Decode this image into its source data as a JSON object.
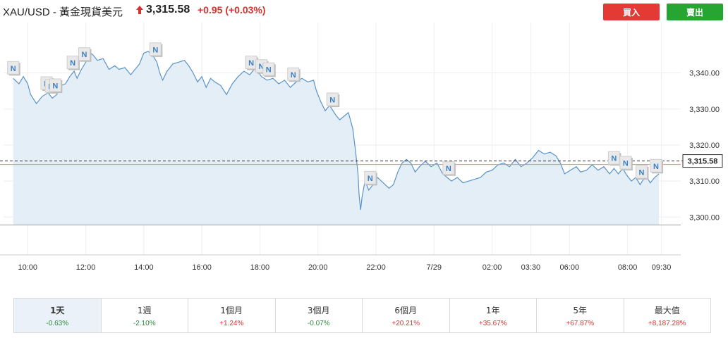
{
  "header": {
    "title": "XAU/USD - 黃金現貨美元",
    "price": "3,315.58",
    "change": "+0.95 (+0.03%)",
    "buy_label": "買入",
    "sell_label": "賣出"
  },
  "colors": {
    "line": "#5b93c7",
    "area": "#e4eef6",
    "buy": "#e53935",
    "sell": "#27a533",
    "price_line": "#e08a8a",
    "positive": "#d8322f",
    "negative": "#2e8b3d"
  },
  "chart_data": {
    "type": "area",
    "title": "",
    "xlabel": "",
    "ylabel": "",
    "ylim": [
      3289.5,
      3354
    ],
    "y_ticks": [
      3300,
      3310,
      3320,
      3330,
      3340
    ],
    "y_tick_labels": [
      "3,300.00",
      "3,310.00",
      "3,320.00",
      "3,330.00",
      "3,340.00"
    ],
    "x_ticks": [
      {
        "t": 0.5,
        "label": "10:00"
      },
      {
        "t": 2.5,
        "label": "12:00"
      },
      {
        "t": 4.5,
        "label": "14:00"
      },
      {
        "t": 6.5,
        "label": "16:00"
      },
      {
        "t": 8.5,
        "label": "18:00"
      },
      {
        "t": 10.5,
        "label": "20:00"
      },
      {
        "t": 12.5,
        "label": "22:00"
      },
      {
        "t": 14.5,
        "label": "7/29"
      },
      {
        "t": 16.5,
        "label": "02:00"
      },
      {
        "t": 17.833,
        "label": "03:30"
      },
      {
        "t": 19.167,
        "label": "06:00"
      },
      {
        "t": 21.167,
        "label": "08:00"
      },
      {
        "t": 22.333,
        "label": "09:30"
      }
    ],
    "x_range": [
      -0.333,
      23.0
    ],
    "current_price": 3315.58,
    "current_price_label": "3,315.58",
    "reference_price": 3314.6,
    "baseline": 3297.8,
    "grid": true,
    "series": [
      {
        "values": [
          [
            0.0,
            3338.5
          ],
          [
            0.2,
            3337.0
          ],
          [
            0.35,
            3339.0
          ],
          [
            0.5,
            3337.0
          ],
          [
            0.6,
            3334.0
          ],
          [
            0.8,
            3331.5
          ],
          [
            1.0,
            3333.5
          ],
          [
            1.2,
            3334.5
          ],
          [
            1.35,
            3333.0
          ],
          [
            1.5,
            3334.0
          ],
          [
            1.65,
            3336.5
          ],
          [
            1.8,
            3337.0
          ],
          [
            1.95,
            3339.0
          ],
          [
            2.1,
            3340.5
          ],
          [
            2.2,
            3338.5
          ],
          [
            2.35,
            3341.0
          ],
          [
            2.5,
            3343.0
          ],
          [
            2.6,
            3346.0
          ],
          [
            2.75,
            3345.0
          ],
          [
            2.9,
            3343.5
          ],
          [
            3.1,
            3344.0
          ],
          [
            3.3,
            3341.0
          ],
          [
            3.5,
            3342.0
          ],
          [
            3.65,
            3341.0
          ],
          [
            3.85,
            3341.5
          ],
          [
            4.05,
            3339.5
          ],
          [
            4.2,
            3341.0
          ],
          [
            4.35,
            3342.5
          ],
          [
            4.5,
            3345.5
          ],
          [
            4.65,
            3346.0
          ],
          [
            4.8,
            3345.0
          ],
          [
            4.95,
            3343.0
          ],
          [
            5.05,
            3340.0
          ],
          [
            5.15,
            3338.0
          ],
          [
            5.3,
            3340.5
          ],
          [
            5.5,
            3342.5
          ],
          [
            5.7,
            3343.0
          ],
          [
            5.9,
            3343.5
          ],
          [
            6.05,
            3342.0
          ],
          [
            6.2,
            3340.0
          ],
          [
            6.35,
            3337.5
          ],
          [
            6.5,
            3339.0
          ],
          [
            6.65,
            3336.0
          ],
          [
            6.8,
            3338.5
          ],
          [
            6.95,
            3337.5
          ],
          [
            7.15,
            3336.5
          ],
          [
            7.35,
            3334.0
          ],
          [
            7.55,
            3337.0
          ],
          [
            7.75,
            3339.0
          ],
          [
            7.95,
            3340.5
          ],
          [
            8.15,
            3339.5
          ],
          [
            8.35,
            3341.5
          ],
          [
            8.55,
            3339.0
          ],
          [
            8.75,
            3338.0
          ],
          [
            8.95,
            3338.5
          ],
          [
            9.15,
            3337.0
          ],
          [
            9.35,
            3338.0
          ],
          [
            9.55,
            3336.0
          ],
          [
            9.75,
            3337.5
          ],
          [
            9.95,
            3338.5
          ],
          [
            10.15,
            3337.5
          ],
          [
            10.35,
            3338.0
          ],
          [
            10.45,
            3335.0
          ],
          [
            10.6,
            3332.0
          ],
          [
            10.75,
            3329.5
          ],
          [
            10.9,
            3331.0
          ],
          [
            11.1,
            3328.5
          ],
          [
            11.25,
            3327.0
          ],
          [
            11.4,
            3328.0
          ],
          [
            11.55,
            3329.0
          ],
          [
            11.7,
            3324.5
          ],
          [
            11.8,
            3318.0
          ],
          [
            11.88,
            3312.0
          ],
          [
            11.92,
            3306.0
          ],
          [
            11.97,
            3302.0
          ],
          [
            12.02,
            3305.5
          ],
          [
            12.12,
            3310.0
          ],
          [
            12.25,
            3307.5
          ],
          [
            12.4,
            3309.0
          ],
          [
            12.55,
            3311.0
          ],
          [
            12.75,
            3309.5
          ],
          [
            12.95,
            3308.0
          ],
          [
            13.1,
            3309.0
          ],
          [
            13.25,
            3312.5
          ],
          [
            13.4,
            3315.0
          ],
          [
            13.55,
            3316.0
          ],
          [
            13.7,
            3315.0
          ],
          [
            13.85,
            3312.5
          ],
          [
            14.0,
            3314.0
          ],
          [
            14.2,
            3315.5
          ],
          [
            14.4,
            3314.0
          ],
          [
            14.6,
            3315.0
          ],
          [
            14.8,
            3312.0
          ],
          [
            14.95,
            3311.0
          ],
          [
            15.1,
            3310.0
          ],
          [
            15.3,
            3311.0
          ],
          [
            15.5,
            3309.5
          ],
          [
            15.7,
            3310.0
          ],
          [
            15.9,
            3310.5
          ],
          [
            16.1,
            3311.0
          ],
          [
            16.3,
            3312.5
          ],
          [
            16.5,
            3313.0
          ],
          [
            16.7,
            3314.5
          ],
          [
            16.9,
            3315.0
          ],
          [
            17.1,
            3314.0
          ],
          [
            17.3,
            3316.0
          ],
          [
            17.5,
            3314.0
          ],
          [
            17.7,
            3315.0
          ],
          [
            17.9,
            3316.5
          ],
          [
            18.1,
            3318.5
          ],
          [
            18.3,
            3317.5
          ],
          [
            18.5,
            3318.0
          ],
          [
            18.7,
            3317.0
          ],
          [
            18.85,
            3315.0
          ],
          [
            19.0,
            3312.0
          ],
          [
            19.2,
            3313.0
          ],
          [
            19.4,
            3314.0
          ],
          [
            19.55,
            3312.5
          ],
          [
            19.75,
            3313.0
          ],
          [
            19.95,
            3314.5
          ],
          [
            20.15,
            3313.0
          ],
          [
            20.35,
            3314.0
          ],
          [
            20.55,
            3312.0
          ],
          [
            20.7,
            3313.5
          ],
          [
            20.85,
            3312.0
          ],
          [
            21.0,
            3313.5
          ],
          [
            21.15,
            3311.5
          ],
          [
            21.3,
            3310.0
          ],
          [
            21.45,
            3311.0
          ],
          [
            21.6,
            3309.0
          ],
          [
            21.8,
            3311.5
          ],
          [
            21.95,
            3309.5
          ],
          [
            22.1,
            3311.0
          ],
          [
            22.25,
            3312.0
          ]
        ]
      }
    ],
    "news_markers": [
      {
        "t": 0.0,
        "label": "N"
      },
      {
        "t": 1.15,
        "label": "N"
      },
      {
        "t": 1.3,
        "label": "N"
      },
      {
        "t": 1.45,
        "label": "N"
      },
      {
        "t": 2.05,
        "label": "N"
      },
      {
        "t": 2.45,
        "label": "N"
      },
      {
        "t": 4.9,
        "label": "N"
      },
      {
        "t": 8.2,
        "label": "N"
      },
      {
        "t": 8.55,
        "label": "N"
      },
      {
        "t": 8.8,
        "label": "N"
      },
      {
        "t": 9.65,
        "label": "N"
      },
      {
        "t": 11.0,
        "label": "N"
      },
      {
        "t": 12.3,
        "label": "N"
      },
      {
        "t": 15.0,
        "label": "N"
      },
      {
        "t": 20.7,
        "label": "N"
      },
      {
        "t": 21.1,
        "label": "N"
      },
      {
        "t": 21.65,
        "label": "N"
      },
      {
        "t": 22.15,
        "label": "N"
      }
    ]
  },
  "periods": [
    {
      "label": "1天",
      "change": "-0.63%",
      "sign": "neg",
      "active": true
    },
    {
      "label": "1週",
      "change": "-2.10%",
      "sign": "neg",
      "active": false
    },
    {
      "label": "1個月",
      "change": "+1.24%",
      "sign": "pos",
      "active": false
    },
    {
      "label": "3個月",
      "change": "-0.07%",
      "sign": "neg",
      "active": false
    },
    {
      "label": "6個月",
      "change": "+20.21%",
      "sign": "pos",
      "active": false
    },
    {
      "label": "1年",
      "change": "+35.67%",
      "sign": "pos",
      "active": false
    },
    {
      "label": "5年",
      "change": "+67.87%",
      "sign": "pos",
      "active": false
    },
    {
      "label": "最大值",
      "change": "+8,187.28%",
      "sign": "pos",
      "active": false
    }
  ]
}
